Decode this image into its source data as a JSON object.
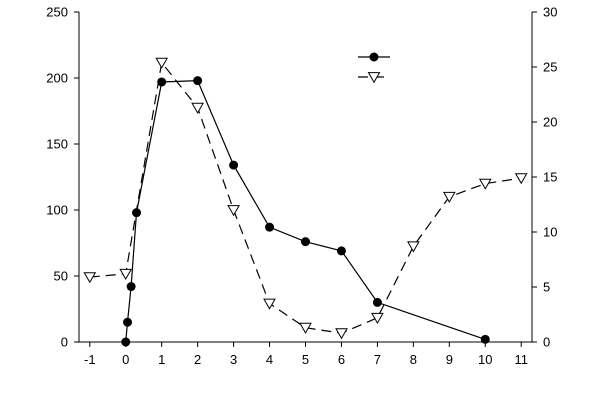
{
  "chart_data": {
    "type": "line",
    "title": "",
    "xlabel": "",
    "ylabel": "",
    "ylabel_right": "",
    "xlim": [
      -1.3,
      11.3
    ],
    "ylim_left": [
      0,
      250
    ],
    "ylim_right": [
      0,
      30
    ],
    "x_ticks": [
      -1,
      0,
      1,
      2,
      3,
      4,
      5,
      6,
      7,
      8,
      9,
      10,
      11
    ],
    "y_left_ticks": [
      0,
      50,
      100,
      150,
      200,
      250
    ],
    "y_right_ticks": [
      0,
      5,
      10,
      15,
      20,
      25,
      30
    ],
    "grid": false,
    "legend_position": "top-right",
    "series": [
      {
        "axis": "left",
        "marker": "filled-circle",
        "line_style": "solid",
        "x": [
          0,
          0.05,
          0.15,
          0.3,
          1,
          2,
          3,
          4,
          5,
          6,
          7,
          10
        ],
        "y": [
          0,
          15,
          42,
          98,
          197,
          198,
          134,
          87,
          76,
          69,
          30,
          2
        ]
      },
      {
        "axis": "right",
        "marker": "open-triangle-down",
        "line_style": "dashed",
        "x": [
          -1,
          0,
          1,
          2,
          3,
          4,
          5,
          6,
          7,
          8,
          9,
          10,
          11
        ],
        "y": [
          5.9,
          6.2,
          25.4,
          21.3,
          12.0,
          3.5,
          1.3,
          0.8,
          2.2,
          8.7,
          13.2,
          14.4,
          14.9
        ]
      }
    ]
  }
}
